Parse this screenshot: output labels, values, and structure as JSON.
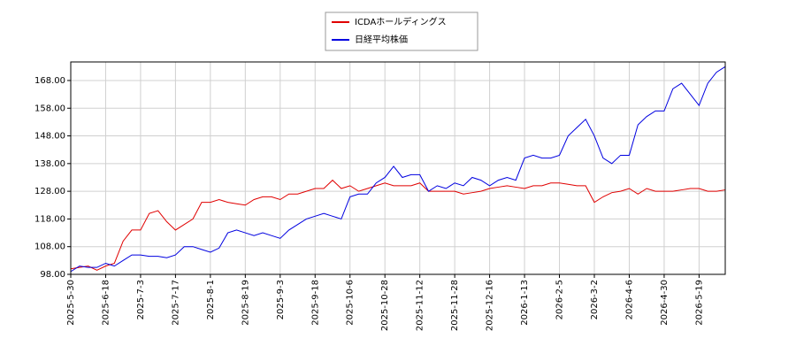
{
  "chart_data": {
    "type": "line",
    "categories": [
      "2025-5-30",
      null,
      null,
      null,
      "2025-6-18",
      null,
      null,
      null,
      "2025-7-3",
      null,
      null,
      null,
      "2025-7-17",
      null,
      null,
      null,
      "2025-8-1",
      null,
      null,
      null,
      "2025-8-19",
      null,
      null,
      null,
      "2025-9-3",
      null,
      null,
      null,
      "2025-9-18",
      null,
      null,
      null,
      "2025-10-6",
      null,
      null,
      null,
      "2025-10-28",
      null,
      null,
      null,
      "2025-11-12",
      null,
      null,
      null,
      "2025-11-28",
      null,
      null,
      null,
      "2025-12-16",
      null,
      null,
      null,
      "2026-1-13",
      null,
      null,
      null,
      "2026-2-5",
      null,
      null,
      null,
      "2026-3-2",
      null,
      null,
      null,
      "2026-4-6",
      null,
      null,
      null,
      "2026-4-30",
      null,
      null,
      null,
      "2026-5-19",
      null,
      null,
      null
    ],
    "series": [
      {
        "name": "ICDAホールディングス",
        "color": "#e00000",
        "values": [
          100,
          100.5,
          101,
          99.5,
          101,
          102,
          110,
          114,
          114,
          120,
          121,
          117,
          114,
          116,
          118,
          124,
          124,
          125,
          124,
          123.5,
          123,
          125,
          126,
          126,
          125,
          127,
          127,
          128,
          129,
          129,
          132,
          129,
          130,
          128,
          129,
          130,
          131,
          130,
          130,
          130,
          131,
          128,
          128,
          128,
          128,
          127,
          127.5,
          128,
          129,
          129.5,
          130,
          129.5,
          129,
          130,
          130,
          131,
          131,
          130.5,
          130,
          130,
          124,
          126,
          127.5,
          128,
          129,
          127,
          129,
          128,
          128,
          128,
          128.5,
          129,
          129,
          128,
          128,
          128.5
        ]
      },
      {
        "name": "日経平均株価",
        "color": "#0000e0",
        "values": [
          99,
          101,
          100.5,
          100.5,
          102,
          101,
          103,
          105,
          105,
          104.5,
          104.5,
          104,
          105,
          108,
          108,
          107,
          106,
          107.5,
          113,
          114,
          113,
          112,
          113,
          112,
          111,
          114,
          116,
          118,
          119,
          120,
          119,
          118,
          126,
          127,
          127,
          131,
          133,
          137,
          133,
          134,
          134,
          128,
          130,
          129,
          131,
          130,
          133,
          132,
          130,
          132,
          133,
          132,
          140,
          141,
          140,
          140,
          141,
          148,
          151,
          154,
          148,
          140,
          138,
          141,
          141,
          152,
          155,
          157,
          157,
          165,
          167,
          163,
          159,
          167,
          171,
          173
        ]
      }
    ],
    "ylim": [
      98,
      174.7
    ],
    "yticks": [
      {
        "value": 98,
        "label": "98.00"
      },
      {
        "value": 108,
        "label": "108.00"
      },
      {
        "value": 118,
        "label": "118.00"
      },
      {
        "value": 128,
        "label": "128.00"
      },
      {
        "value": 138,
        "label": "138.00"
      },
      {
        "value": 148,
        "label": "148.00"
      },
      {
        "value": 158,
        "label": "158.00"
      },
      {
        "value": 168,
        "label": "168.00"
      }
    ],
    "grid": true,
    "legend": "top"
  }
}
